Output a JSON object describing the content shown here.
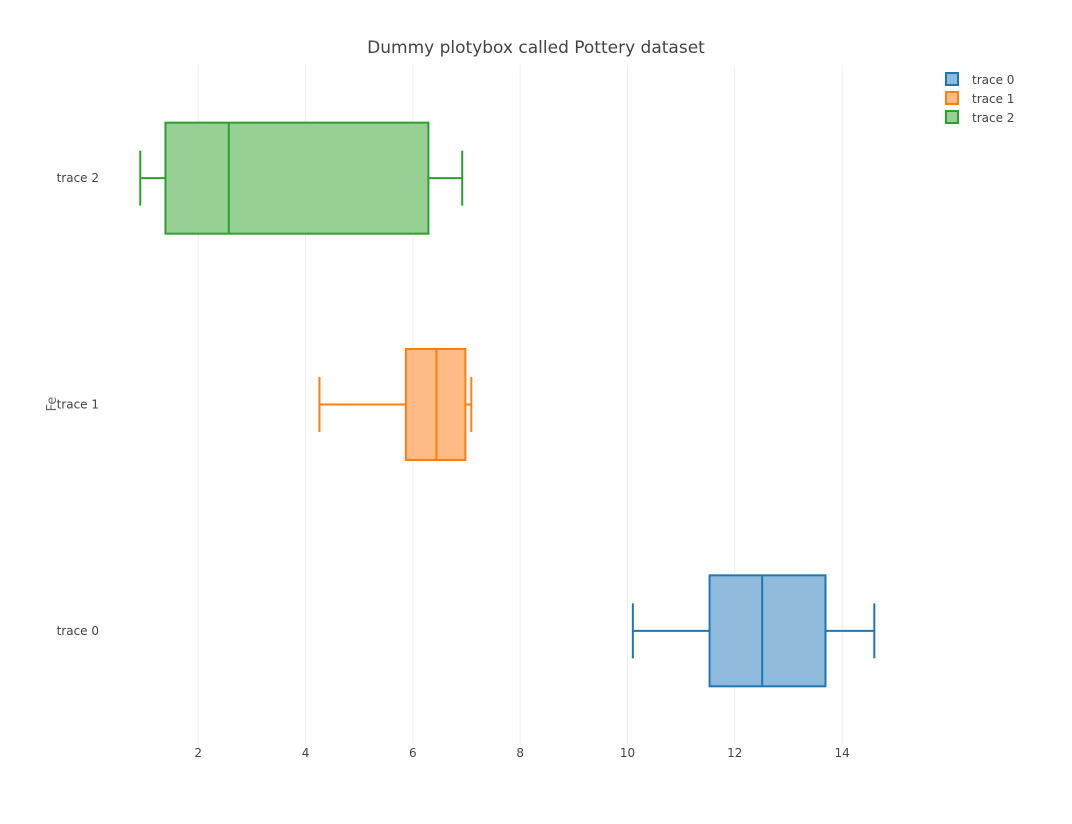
{
  "chart_data": {
    "type": "box",
    "orientation": "horizontal",
    "title": "Dummy plotybox called Pottery dataset",
    "xlabel": "",
    "ylabel": "Fe",
    "xlim": [
      0.3,
      16.2
    ],
    "xticks": [
      2,
      4,
      6,
      8,
      10,
      12,
      14
    ],
    "grid": true,
    "legend_position": "top-right",
    "series": [
      {
        "name": "trace 0",
        "color": "#1f77b4",
        "fill": "#8fbadb",
        "min": 10.1,
        "q1": 11.53,
        "median": 12.51,
        "q3": 13.69,
        "max": 14.6
      },
      {
        "name": "trace 1",
        "color": "#ff7f0e",
        "fill": "#ffbb85",
        "min": 4.26,
        "q1": 5.87,
        "median": 6.44,
        "q3": 6.98,
        "max": 7.09
      },
      {
        "name": "trace 2",
        "color": "#2ca02c",
        "fill": "#96d095",
        "min": 0.92,
        "q1": 1.39,
        "median": 2.57,
        "q3": 6.29,
        "max": 6.92
      }
    ]
  }
}
